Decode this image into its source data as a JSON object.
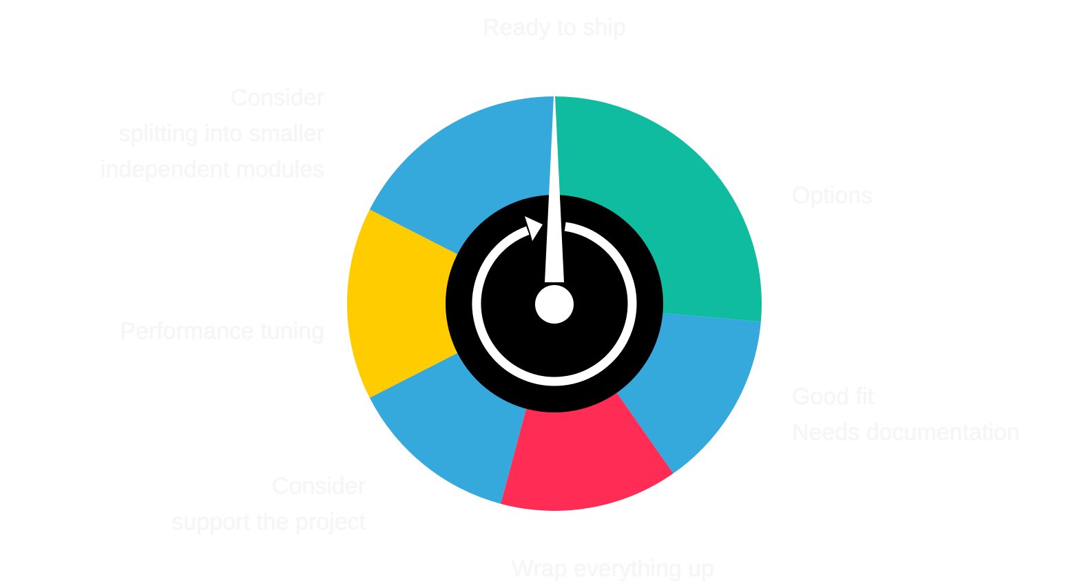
{
  "wheel": {
    "segments": [
      {
        "name": "teal",
        "color": "#10BCA0"
      },
      {
        "name": "blue-right",
        "color": "#35A9DC"
      },
      {
        "name": "red",
        "color": "#FF2D55"
      },
      {
        "name": "blue-bottom-left",
        "color": "#35A9DC"
      },
      {
        "name": "yellow",
        "color": "#FFCC00"
      },
      {
        "name": "blue-top-left",
        "color": "#35A9DC"
      }
    ],
    "hub_color": "#000000",
    "needle_color": "#ffffff",
    "hub_icon": "rotate-arrow-icon"
  },
  "labels": {
    "top": [
      "Ready to ship"
    ],
    "right_upper": [
      "Options"
    ],
    "right_lower": [
      "Good fit",
      "Needs documentation"
    ],
    "bottom": [
      "Wrap everything up"
    ],
    "left_lower": [
      "Consider",
      "support the project"
    ],
    "left_middle": [
      "Performance tuning"
    ],
    "left_upper": [
      "Consider",
      "splitting into smaller",
      "independent modules"
    ]
  }
}
